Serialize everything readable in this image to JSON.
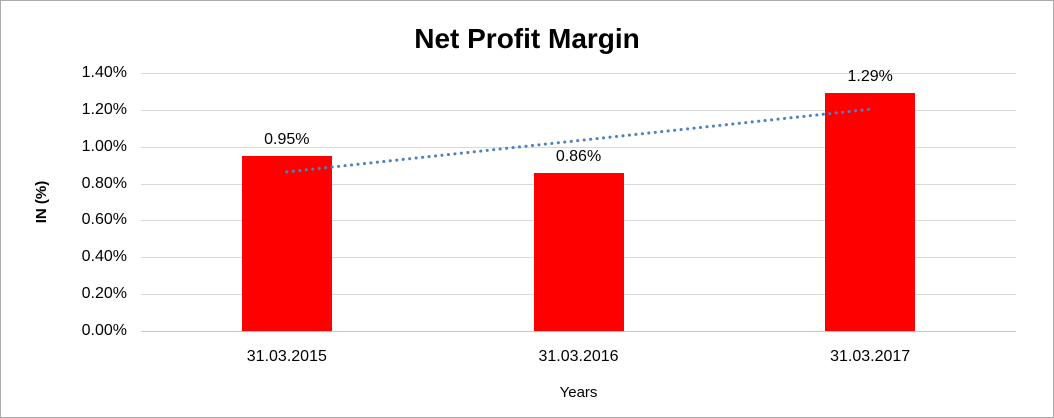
{
  "chart_data": {
    "type": "bar",
    "title": "Net Profit Margin",
    "categories": [
      "31.03.2015",
      "31.03.2016",
      "31.03.2017"
    ],
    "values": [
      0.95,
      0.86,
      1.29
    ],
    "value_labels": [
      "0.95%",
      "0.86%",
      "1.29%"
    ],
    "xlabel": "Years",
    "ylabel": "IN (%)",
    "ylim": [
      0,
      1.4
    ],
    "ytick_step": 0.2,
    "ytick_labels": [
      "0.00%",
      "0.20%",
      "0.40%",
      "0.60%",
      "0.80%",
      "1.00%",
      "1.20%",
      "1.40%"
    ],
    "grid": true,
    "legend": "none",
    "bar_color": "#ff0000",
    "gridline_color": "#d9d9d9",
    "trendline": {
      "type": "linear",
      "style": "dotted",
      "color": "#4e81bd",
      "start_value": 0.8633,
      "end_value": 1.2033
    }
  }
}
